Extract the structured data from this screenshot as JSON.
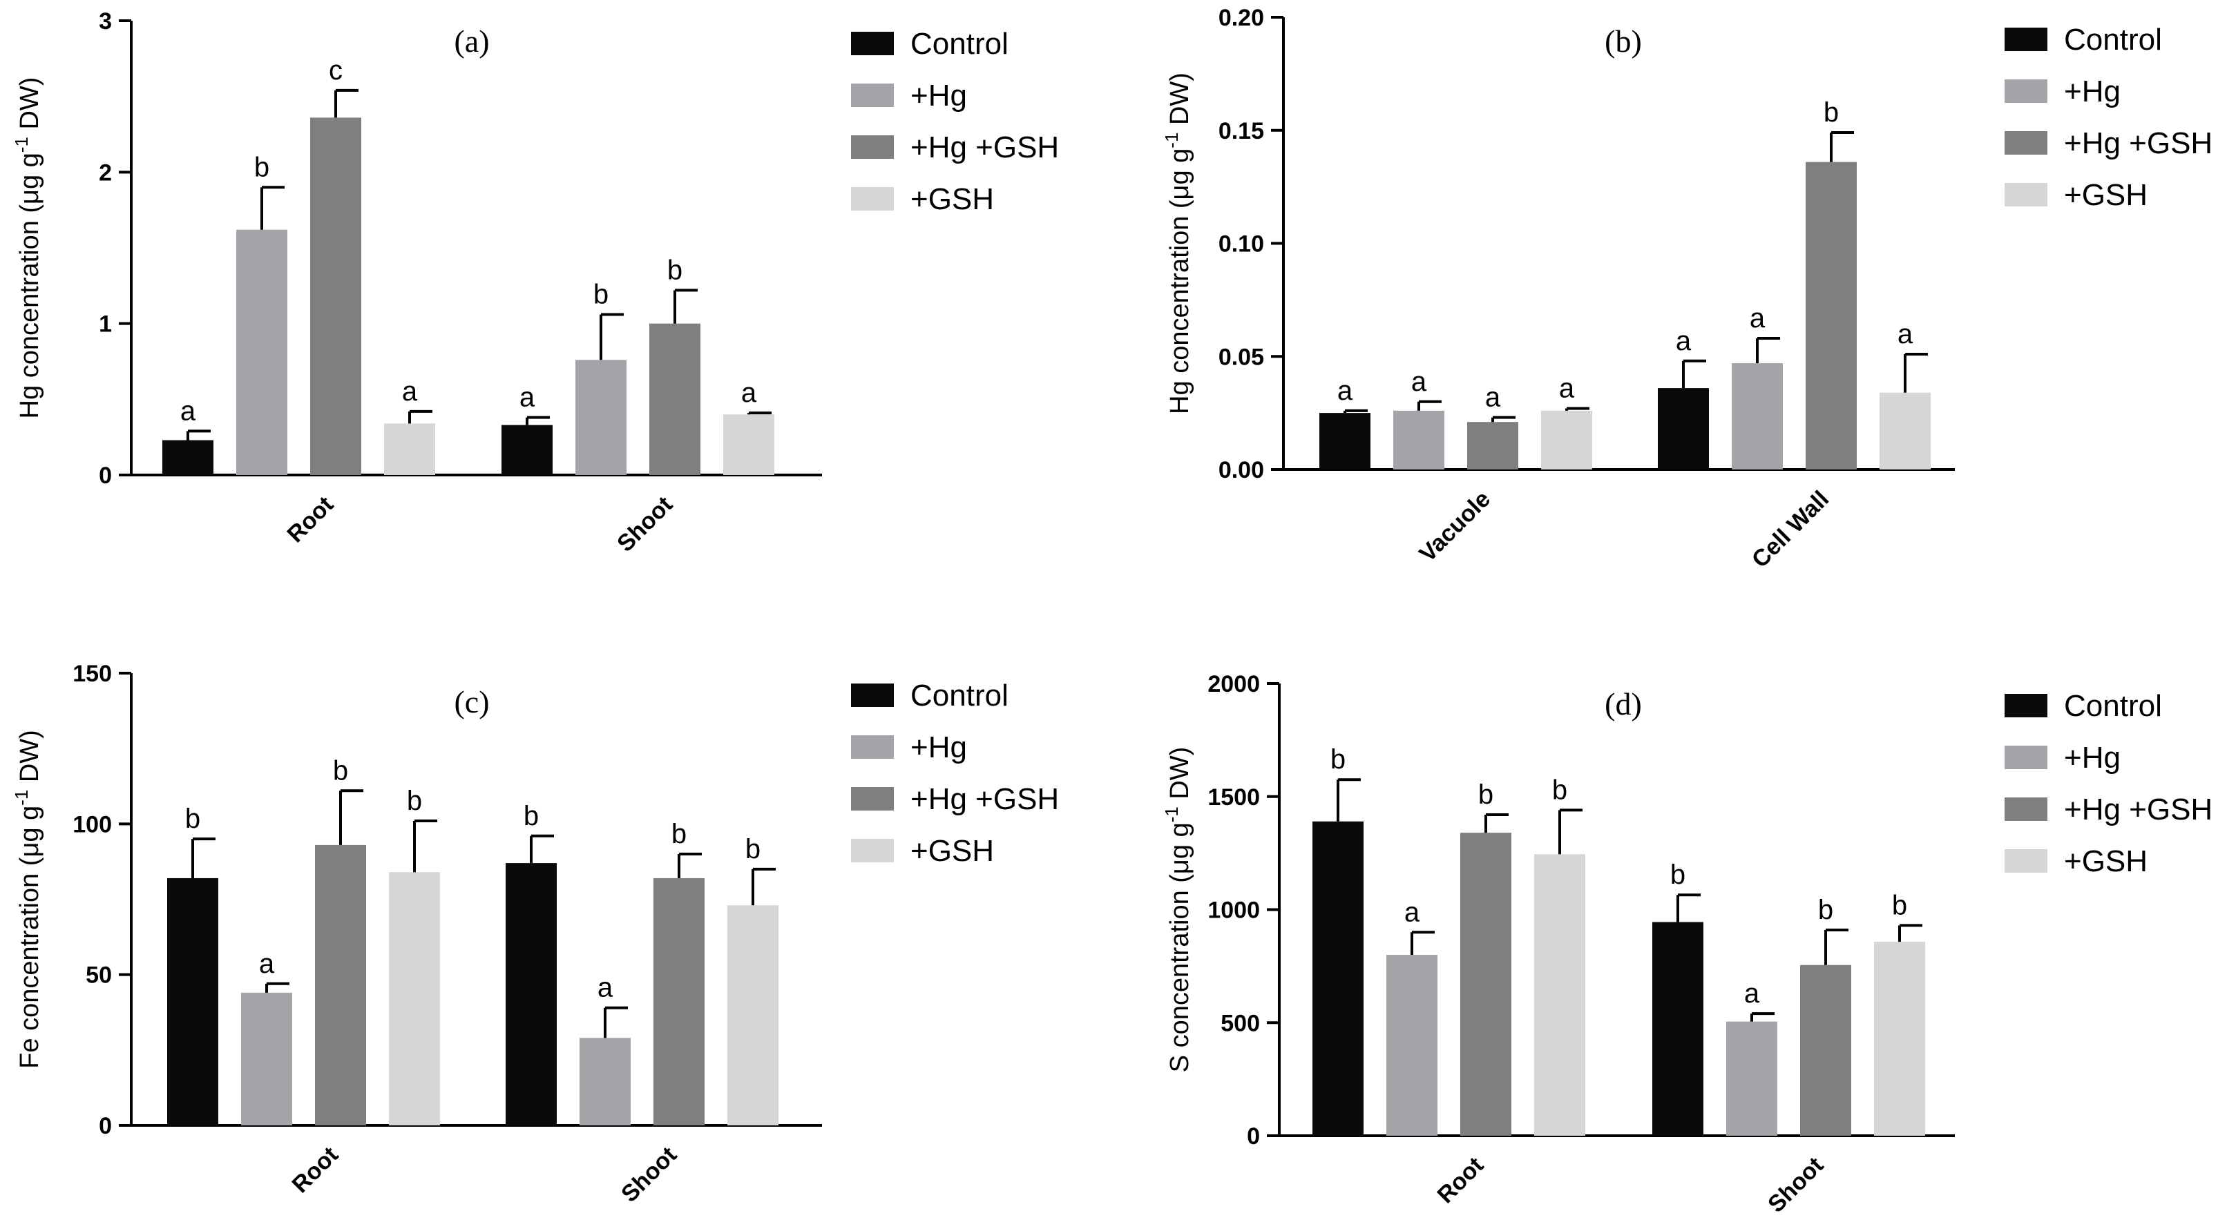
{
  "legend": [
    "Control",
    "+Hg",
    "+Hg +GSH",
    "+GSH"
  ],
  "series_colors": [
    "#0a0a0a",
    "#a3a3a8",
    "#7f7f7f",
    "#d6d6d6"
  ],
  "chart_data": [
    {
      "type": "bar",
      "title": "(a)",
      "ylabel_main": "Hg concentration (μg g",
      "ylabel_sup": "-1",
      "ylabel_tail": " DW)",
      "ylim": [
        0,
        3
      ],
      "yticks": [
        0,
        1,
        2,
        3
      ],
      "ytick_labels": [
        "0",
        "1",
        "2",
        "3"
      ],
      "categories": [
        "Root",
        "Shoot"
      ],
      "series": [
        {
          "name": "Control",
          "values": [
            0.23,
            0.33
          ],
          "errors": [
            0.06,
            0.05
          ],
          "labels": [
            "a",
            "a"
          ]
        },
        {
          "name": "+Hg",
          "values": [
            1.62,
            0.76
          ],
          "errors": [
            0.28,
            0.3
          ],
          "labels": [
            "b",
            "b"
          ]
        },
        {
          "name": "+Hg +GSH",
          "values": [
            2.36,
            1.0
          ],
          "errors": [
            0.18,
            0.22
          ],
          "labels": [
            "c",
            "b"
          ]
        },
        {
          "name": "+GSH",
          "values": [
            0.34,
            0.4
          ],
          "errors": [
            0.08,
            0.01
          ],
          "labels": [
            "a",
            "a"
          ]
        }
      ],
      "legend_placement": "right"
    },
    {
      "type": "bar",
      "title": "(b)",
      "ylabel_main": "Hg concentration (μg g",
      "ylabel_sup": "-1",
      "ylabel_tail": " DW)",
      "ylim": [
        0,
        0.2
      ],
      "yticks": [
        0,
        0.05,
        0.1,
        0.15,
        0.2
      ],
      "ytick_labels": [
        "0.00",
        "0.05",
        "0.10",
        "0.15",
        "0.20"
      ],
      "categories": [
        "Vacuole",
        "Cell Wall"
      ],
      "series": [
        {
          "name": "Control",
          "values": [
            0.025,
            0.036
          ],
          "errors": [
            0.001,
            0.012
          ],
          "labels": [
            "a",
            "a"
          ]
        },
        {
          "name": "+Hg",
          "values": [
            0.026,
            0.047
          ],
          "errors": [
            0.004,
            0.011
          ],
          "labels": [
            "a",
            "a"
          ]
        },
        {
          "name": "+Hg +GSH",
          "values": [
            0.021,
            0.136
          ],
          "errors": [
            0.002,
            0.013
          ],
          "labels": [
            "a",
            "b"
          ]
        },
        {
          "name": "+GSH",
          "values": [
            0.026,
            0.034
          ],
          "errors": [
            0.001,
            0.017
          ],
          "labels": [
            "a",
            "a"
          ]
        }
      ],
      "legend_placement": "right"
    },
    {
      "type": "bar",
      "title": "(c)",
      "ylabel_main": "Fe concentration (μg g",
      "ylabel_sup": "-1",
      "ylabel_tail": " DW)",
      "ylim": [
        0,
        150
      ],
      "yticks": [
        0,
        50,
        100,
        150
      ],
      "ytick_labels": [
        "0",
        "50",
        "100",
        "150"
      ],
      "categories": [
        "Root",
        "Shoot"
      ],
      "series": [
        {
          "name": "Control",
          "values": [
            82,
            87
          ],
          "errors": [
            13,
            9
          ],
          "labels": [
            "b",
            "b"
          ]
        },
        {
          "name": "+Hg",
          "values": [
            44,
            29
          ],
          "errors": [
            3,
            10
          ],
          "labels": [
            "a",
            "a"
          ]
        },
        {
          "name": "+Hg +GSH",
          "values": [
            93,
            82
          ],
          "errors": [
            18,
            8
          ],
          "labels": [
            "b",
            "b"
          ]
        },
        {
          "name": "+GSH",
          "values": [
            84,
            73
          ],
          "errors": [
            17,
            12
          ],
          "labels": [
            "b",
            "b"
          ]
        }
      ],
      "legend_placement": "right"
    },
    {
      "type": "bar",
      "title": "(d)",
      "ylabel_main": "S concentration (μg g",
      "ylabel_sup": "-1",
      "ylabel_tail": " DW)",
      "ylim": [
        0,
        2000
      ],
      "yticks": [
        0,
        500,
        1000,
        1500,
        2000
      ],
      "ytick_labels": [
        "0",
        "500",
        "1000",
        "1500",
        "2000"
      ],
      "categories": [
        "Root",
        "Shoot"
      ],
      "series": [
        {
          "name": "Control",
          "values": [
            1390,
            945
          ],
          "errors": [
            185,
            120
          ],
          "labels": [
            "b",
            "b"
          ]
        },
        {
          "name": "+Hg",
          "values": [
            800,
            505
          ],
          "errors": [
            100,
            35
          ],
          "labels": [
            "a",
            "a"
          ]
        },
        {
          "name": "+Hg +GSH",
          "values": [
            1340,
            755
          ],
          "errors": [
            80,
            155
          ],
          "labels": [
            "b",
            "b"
          ]
        },
        {
          "name": "+GSH",
          "values": [
            1245,
            858
          ],
          "errors": [
            195,
            72
          ],
          "labels": [
            "b",
            "b"
          ]
        }
      ],
      "legend_placement": "right"
    }
  ]
}
